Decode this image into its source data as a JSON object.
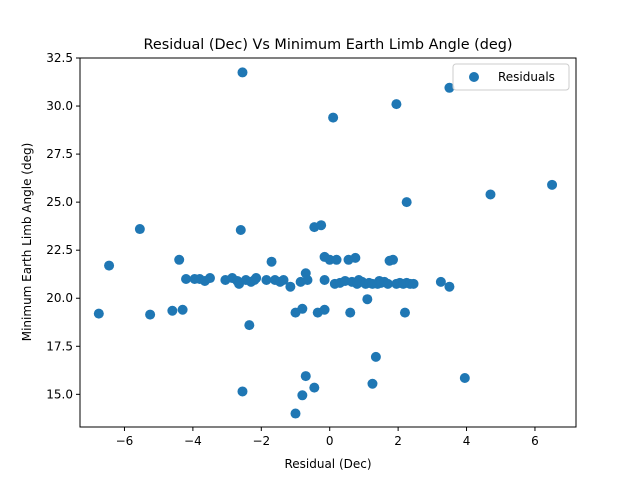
{
  "chart_data": {
    "type": "scatter",
    "title": "Residual (Dec) Vs Minimum Earth Limb Angle (deg)",
    "xlabel": "Residual (Dec)",
    "ylabel": "Minimum Earth Limb Angle (deg)",
    "xlim": [
      -7.3,
      7.2
    ],
    "ylim": [
      13.3,
      32.5
    ],
    "xticks": [
      -6,
      -4,
      -2,
      0,
      2,
      4,
      6
    ],
    "xtick_labels": [
      "−6",
      "−4",
      "−2",
      "0",
      "2",
      "4",
      "6"
    ],
    "yticks": [
      15.0,
      17.5,
      20.0,
      22.5,
      25.0,
      27.5,
      30.0,
      32.5
    ],
    "ytick_labels": [
      "15.0",
      "17.5",
      "20.0",
      "22.5",
      "25.0",
      "27.5",
      "30.0",
      "32.5"
    ],
    "grid": false,
    "legend_position": "top-right",
    "series": [
      {
        "name": "Residuals",
        "color": "#1f77b4",
        "points": [
          [
            -6.75,
            19.2
          ],
          [
            -6.45,
            21.7
          ],
          [
            -5.55,
            23.6
          ],
          [
            -5.25,
            19.15
          ],
          [
            -4.6,
            19.35
          ],
          [
            -4.4,
            22.0
          ],
          [
            -4.3,
            19.4
          ],
          [
            -4.2,
            21.0
          ],
          [
            -3.95,
            21.0
          ],
          [
            -3.8,
            21.0
          ],
          [
            -3.65,
            20.9
          ],
          [
            -3.5,
            21.05
          ],
          [
            -3.05,
            20.95
          ],
          [
            -2.85,
            21.05
          ],
          [
            -2.7,
            20.9
          ],
          [
            -2.65,
            20.75
          ],
          [
            -2.6,
            23.55
          ],
          [
            -2.55,
            31.75
          ],
          [
            -2.55,
            15.15
          ],
          [
            -2.45,
            20.95
          ],
          [
            -2.35,
            18.6
          ],
          [
            -2.3,
            20.85
          ],
          [
            -2.2,
            20.95
          ],
          [
            -2.15,
            21.05
          ],
          [
            -1.85,
            20.95
          ],
          [
            -1.7,
            21.9
          ],
          [
            -1.6,
            20.95
          ],
          [
            -1.45,
            20.85
          ],
          [
            -1.35,
            20.95
          ],
          [
            -1.15,
            20.6
          ],
          [
            -1.0,
            14.0
          ],
          [
            -1.0,
            19.25
          ],
          [
            -0.85,
            20.85
          ],
          [
            -0.8,
            19.45
          ],
          [
            -0.8,
            14.95
          ],
          [
            -0.7,
            21.3
          ],
          [
            -0.65,
            20.95
          ],
          [
            -0.7,
            15.95
          ],
          [
            -0.45,
            23.7
          ],
          [
            -0.45,
            15.35
          ],
          [
            -0.35,
            19.25
          ],
          [
            -0.25,
            23.8
          ],
          [
            -0.15,
            19.4
          ],
          [
            -0.15,
            20.95
          ],
          [
            -0.15,
            22.15
          ],
          [
            0.0,
            22.0
          ],
          [
            0.1,
            29.4
          ],
          [
            0.15,
            20.75
          ],
          [
            0.2,
            22.0
          ],
          [
            0.3,
            20.8
          ],
          [
            0.45,
            20.9
          ],
          [
            0.55,
            22.0
          ],
          [
            0.6,
            19.25
          ],
          [
            0.65,
            20.85
          ],
          [
            0.75,
            22.1
          ],
          [
            0.8,
            20.75
          ],
          [
            0.85,
            20.95
          ],
          [
            0.95,
            20.85
          ],
          [
            1.05,
            20.75
          ],
          [
            1.1,
            19.95
          ],
          [
            1.15,
            20.8
          ],
          [
            1.25,
            20.75
          ],
          [
            1.25,
            15.55
          ],
          [
            1.35,
            16.95
          ],
          [
            1.4,
            20.75
          ],
          [
            1.45,
            20.9
          ],
          [
            1.5,
            20.8
          ],
          [
            1.6,
            20.85
          ],
          [
            1.7,
            20.75
          ],
          [
            1.75,
            21.95
          ],
          [
            1.85,
            22.0
          ],
          [
            1.95,
            20.75
          ],
          [
            1.95,
            30.1
          ],
          [
            2.05,
            20.8
          ],
          [
            2.15,
            20.75
          ],
          [
            2.2,
            19.25
          ],
          [
            2.25,
            20.8
          ],
          [
            2.25,
            25.0
          ],
          [
            2.35,
            20.75
          ],
          [
            2.45,
            20.75
          ],
          [
            3.25,
            20.85
          ],
          [
            3.5,
            30.95
          ],
          [
            3.5,
            20.6
          ],
          [
            3.95,
            15.85
          ],
          [
            4.7,
            25.4
          ],
          [
            6.5,
            25.9
          ]
        ]
      }
    ]
  }
}
